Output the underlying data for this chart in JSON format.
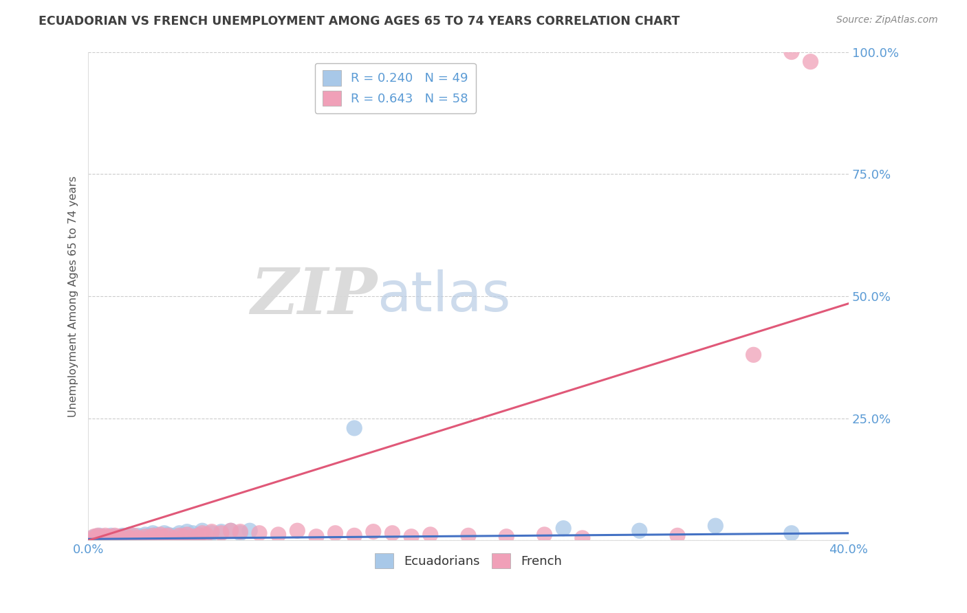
{
  "title": "ECUADORIAN VS FRENCH UNEMPLOYMENT AMONG AGES 65 TO 74 YEARS CORRELATION CHART",
  "source_text": "Source: ZipAtlas.com",
  "ylabel": "Unemployment Among Ages 65 to 74 years",
  "xlim": [
    0.0,
    0.4
  ],
  "ylim": [
    0.0,
    1.0
  ],
  "xticks": [
    0.0,
    0.08,
    0.16,
    0.24,
    0.32,
    0.4
  ],
  "xticklabels": [
    "0.0%",
    "",
    "",
    "",
    "",
    "40.0%"
  ],
  "yticks": [
    0.0,
    0.25,
    0.5,
    0.75,
    1.0
  ],
  "yticklabels": [
    "",
    "25.0%",
    "50.0%",
    "75.0%",
    "100.0%"
  ],
  "legend_blue_label": "R = 0.240   N = 49",
  "legend_pink_label": "R = 0.643   N = 58",
  "blue_color": "#a8c8e8",
  "pink_color": "#f0a0b8",
  "line_blue": "#4472c4",
  "line_pink": "#e05878",
  "title_color": "#404040",
  "axis_tick_color": "#5b9bd5",
  "grid_color": "#cccccc",
  "blue_scatter": [
    [
      0.002,
      0.005
    ],
    [
      0.003,
      0.002
    ],
    [
      0.004,
      0.008
    ],
    [
      0.005,
      0.003
    ],
    [
      0.006,
      0.01
    ],
    [
      0.007,
      0.005
    ],
    [
      0.008,
      0.008
    ],
    [
      0.009,
      0.003
    ],
    [
      0.01,
      0.005
    ],
    [
      0.011,
      0.002
    ],
    [
      0.012,
      0.01
    ],
    [
      0.013,
      0.005
    ],
    [
      0.014,
      0.008
    ],
    [
      0.015,
      0.003
    ],
    [
      0.016,
      0.005
    ],
    [
      0.017,
      0.008
    ],
    [
      0.018,
      0.01
    ],
    [
      0.019,
      0.005
    ],
    [
      0.02,
      0.008
    ],
    [
      0.021,
      0.003
    ],
    [
      0.022,
      0.012
    ],
    [
      0.023,
      0.008
    ],
    [
      0.025,
      0.005
    ],
    [
      0.026,
      0.01
    ],
    [
      0.028,
      0.008
    ],
    [
      0.03,
      0.012
    ],
    [
      0.032,
      0.01
    ],
    [
      0.034,
      0.015
    ],
    [
      0.036,
      0.012
    ],
    [
      0.038,
      0.008
    ],
    [
      0.04,
      0.015
    ],
    [
      0.042,
      0.012
    ],
    [
      0.045,
      0.01
    ],
    [
      0.048,
      0.015
    ],
    [
      0.05,
      0.012
    ],
    [
      0.052,
      0.018
    ],
    [
      0.055,
      0.015
    ],
    [
      0.058,
      0.012
    ],
    [
      0.06,
      0.02
    ],
    [
      0.065,
      0.015
    ],
    [
      0.07,
      0.018
    ],
    [
      0.075,
      0.02
    ],
    [
      0.08,
      0.015
    ],
    [
      0.085,
      0.02
    ],
    [
      0.14,
      0.23
    ],
    [
      0.25,
      0.025
    ],
    [
      0.29,
      0.02
    ],
    [
      0.33,
      0.03
    ],
    [
      0.37,
      0.015
    ]
  ],
  "pink_scatter": [
    [
      0.002,
      0.002
    ],
    [
      0.003,
      0.008
    ],
    [
      0.004,
      0.005
    ],
    [
      0.005,
      0.01
    ],
    [
      0.006,
      0.003
    ],
    [
      0.007,
      0.008
    ],
    [
      0.008,
      0.005
    ],
    [
      0.009,
      0.01
    ],
    [
      0.01,
      0.002
    ],
    [
      0.011,
      0.008
    ],
    [
      0.012,
      0.005
    ],
    [
      0.013,
      0.003
    ],
    [
      0.014,
      0.01
    ],
    [
      0.015,
      0.005
    ],
    [
      0.016,
      0.008
    ],
    [
      0.018,
      0.003
    ],
    [
      0.02,
      0.008
    ],
    [
      0.022,
      0.005
    ],
    [
      0.024,
      0.01
    ],
    [
      0.026,
      0.005
    ],
    [
      0.028,
      0.003
    ],
    [
      0.03,
      0.008
    ],
    [
      0.032,
      0.005
    ],
    [
      0.034,
      0.01
    ],
    [
      0.036,
      0.008
    ],
    [
      0.038,
      0.012
    ],
    [
      0.04,
      0.008
    ],
    [
      0.042,
      0.01
    ],
    [
      0.045,
      0.005
    ],
    [
      0.048,
      0.01
    ],
    [
      0.05,
      0.008
    ],
    [
      0.052,
      0.012
    ],
    [
      0.055,
      0.008
    ],
    [
      0.058,
      0.01
    ],
    [
      0.06,
      0.015
    ],
    [
      0.062,
      0.012
    ],
    [
      0.065,
      0.018
    ],
    [
      0.07,
      0.015
    ],
    [
      0.075,
      0.02
    ],
    [
      0.08,
      0.018
    ],
    [
      0.09,
      0.015
    ],
    [
      0.1,
      0.012
    ],
    [
      0.11,
      0.02
    ],
    [
      0.12,
      0.008
    ],
    [
      0.13,
      0.015
    ],
    [
      0.14,
      0.01
    ],
    [
      0.15,
      0.018
    ],
    [
      0.16,
      0.015
    ],
    [
      0.17,
      0.008
    ],
    [
      0.18,
      0.012
    ],
    [
      0.2,
      0.01
    ],
    [
      0.22,
      0.008
    ],
    [
      0.24,
      0.012
    ],
    [
      0.26,
      0.005
    ],
    [
      0.31,
      0.01
    ],
    [
      0.35,
      0.38
    ],
    [
      0.37,
      1.0
    ],
    [
      0.38,
      0.98
    ]
  ],
  "blue_line_x": [
    0.0,
    0.4
  ],
  "blue_line_y": [
    0.003,
    0.015
  ],
  "pink_line_x": [
    0.0,
    0.4
  ],
  "pink_line_y": [
    0.0,
    0.485
  ]
}
